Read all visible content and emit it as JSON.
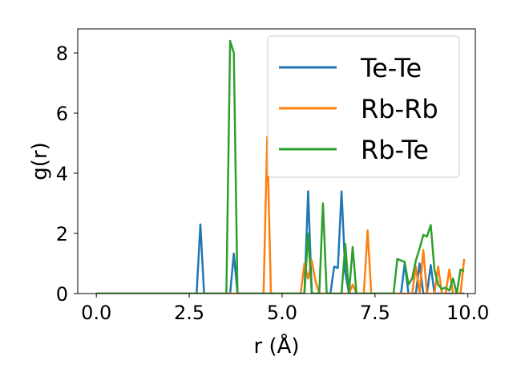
{
  "chart_data": {
    "type": "line",
    "xlabel": "r (Å)",
    "ylabel": "g(r)",
    "xlim": [
      -0.5,
      10.2
    ],
    "ylim": [
      0,
      8.8
    ],
    "xticks": [
      0.0,
      2.5,
      5.0,
      7.5,
      10.0
    ],
    "xtick_labels": [
      "0.0",
      "2.5",
      "5.0",
      "7.5",
      "10.0"
    ],
    "yticks": [
      0,
      2,
      4,
      6,
      8
    ],
    "ytick_labels": [
      "0",
      "2",
      "4",
      "6",
      "8"
    ],
    "grid": false,
    "legend": "top-right",
    "series": [
      {
        "name": "Te-Te",
        "color": "#1f77b4",
        "points": [
          [
            0.0,
            0
          ],
          [
            2.7,
            0
          ],
          [
            2.8,
            2.3
          ],
          [
            2.9,
            0
          ],
          [
            3.6,
            0
          ],
          [
            3.7,
            1.33
          ],
          [
            3.8,
            0
          ],
          [
            5.6,
            0
          ],
          [
            5.7,
            3.4
          ],
          [
            5.8,
            0
          ],
          [
            6.3,
            0
          ],
          [
            6.4,
            0.9
          ],
          [
            6.5,
            0.85
          ],
          [
            6.6,
            3.4
          ],
          [
            6.7,
            0.7
          ],
          [
            6.8,
            0
          ],
          [
            8.2,
            0
          ],
          [
            8.3,
            1.0
          ],
          [
            8.4,
            0
          ],
          [
            8.6,
            0
          ],
          [
            8.7,
            1.0
          ],
          [
            8.8,
            0
          ],
          [
            8.9,
            0
          ],
          [
            9.0,
            0.95
          ],
          [
            9.1,
            0
          ],
          [
            9.9,
            0
          ]
        ]
      },
      {
        "name": "Rb-Rb",
        "color": "#ff7f0e",
        "points": [
          [
            0.0,
            0
          ],
          [
            4.5,
            0
          ],
          [
            4.6,
            5.2
          ],
          [
            4.7,
            0
          ],
          [
            5.5,
            0
          ],
          [
            5.6,
            1.0
          ],
          [
            5.7,
            0.5
          ],
          [
            5.8,
            1.1
          ],
          [
            5.9,
            0.4
          ],
          [
            6.0,
            0
          ],
          [
            6.8,
            0
          ],
          [
            6.9,
            0.3
          ],
          [
            7.0,
            0
          ],
          [
            7.2,
            0
          ],
          [
            7.3,
            2.1
          ],
          [
            7.4,
            0
          ],
          [
            8.5,
            0
          ],
          [
            8.6,
            0.9
          ],
          [
            8.7,
            0
          ],
          [
            8.8,
            1.45
          ],
          [
            8.9,
            0
          ],
          [
            9.1,
            0
          ],
          [
            9.2,
            0.9
          ],
          [
            9.3,
            0
          ],
          [
            9.4,
            0
          ],
          [
            9.5,
            0.8
          ],
          [
            9.6,
            0
          ],
          [
            9.8,
            0
          ],
          [
            9.9,
            1.15
          ]
        ]
      },
      {
        "name": "Rb-Te",
        "color": "#2ca02c",
        "points": [
          [
            0.0,
            0
          ],
          [
            3.5,
            0
          ],
          [
            3.6,
            8.4
          ],
          [
            3.7,
            8.0
          ],
          [
            3.8,
            0
          ],
          [
            5.6,
            0
          ],
          [
            5.7,
            2.0
          ],
          [
            5.8,
            0
          ],
          [
            6.0,
            0
          ],
          [
            6.1,
            3.0
          ],
          [
            6.2,
            0
          ],
          [
            6.6,
            0
          ],
          [
            6.7,
            1.65
          ],
          [
            6.8,
            0
          ],
          [
            6.9,
            1.55
          ],
          [
            7.0,
            0
          ],
          [
            8.0,
            0
          ],
          [
            8.1,
            1.15
          ],
          [
            8.2,
            1.1
          ],
          [
            8.3,
            1.05
          ],
          [
            8.4,
            0.3
          ],
          [
            8.5,
            0.5
          ],
          [
            8.6,
            1.1
          ],
          [
            8.7,
            1.5
          ],
          [
            8.8,
            1.95
          ],
          [
            8.9,
            1.9
          ],
          [
            9.0,
            2.28
          ],
          [
            9.1,
            0.8
          ],
          [
            9.2,
            0.3
          ],
          [
            9.3,
            0.15
          ],
          [
            9.4,
            0.2
          ],
          [
            9.5,
            0.1
          ],
          [
            9.6,
            0.5
          ],
          [
            9.7,
            0
          ],
          [
            9.8,
            0.8
          ],
          [
            9.9,
            0.75
          ]
        ]
      }
    ]
  }
}
